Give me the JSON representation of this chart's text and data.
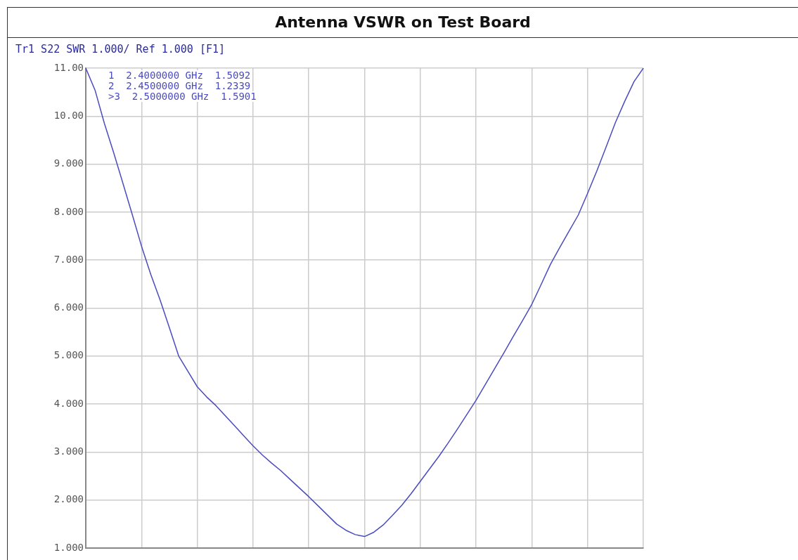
{
  "chart_data": {
    "type": "line",
    "title": "Antenna VSWR on Test Board",
    "subtitle": "Tr1 S22 SWR 1.000/ Ref 1.000 [F1]",
    "categories": [
      null,
      null,
      null,
      null,
      null,
      null,
      null,
      null,
      null,
      null,
      null,
      null,
      null,
      null,
      null,
      null,
      null,
      null,
      null,
      null,
      null,
      null,
      null,
      null,
      null,
      null,
      null,
      null,
      null,
      null,
      null,
      null,
      null,
      null,
      null,
      null,
      null,
      null,
      null,
      null,
      null,
      null,
      null,
      null,
      null,
      null,
      null,
      null,
      null,
      null,
      null,
      null,
      null,
      null,
      null,
      null,
      null,
      null,
      null,
      null,
      null
    ],
    "series": [
      {
        "color": "#4b4bc0",
        "values": [
          11,
          10.54,
          9.85,
          9.24,
          8.6,
          7.95,
          7.29,
          6.7,
          6.17,
          5.59,
          5.0,
          4.68,
          4.36,
          4.15,
          3.97,
          3.76,
          3.55,
          3.34,
          3.13,
          2.94,
          2.77,
          2.61,
          2.43,
          2.25,
          2.07,
          1.88,
          1.69,
          1.5,
          1.37,
          1.28,
          1.24,
          1.33,
          1.48,
          1.68,
          1.89,
          2.13,
          2.39,
          2.65,
          2.91,
          3.19,
          3.48,
          3.78,
          4.08,
          4.41,
          4.74,
          5.07,
          5.41,
          5.74,
          6.08,
          6.49,
          6.91,
          7.26,
          7.6,
          7.94,
          8.39,
          8.86,
          9.36,
          9.87,
          10.31,
          10.72,
          11.0
        ]
      }
    ],
    "ylim": [
      1,
      11
    ],
    "yticks": [
      {
        "value": 1,
        "label": "1.000"
      },
      {
        "value": 2,
        "label": "2.000"
      },
      {
        "value": 3,
        "label": "3.000"
      },
      {
        "value": 4,
        "label": "4.000"
      },
      {
        "value": 5,
        "label": "5.000"
      },
      {
        "value": 6,
        "label": "6.000"
      },
      {
        "value": 7,
        "label": "7.000"
      },
      {
        "value": 8,
        "label": "8.000"
      },
      {
        "value": 9,
        "label": "9.000"
      },
      {
        "value": 10,
        "label": "10.00"
      },
      {
        "value": 11,
        "label": "11.00"
      }
    ],
    "tick_labels": "y",
    "grid": true,
    "marker": "none",
    "line_style": "solid",
    "legend": false,
    "annotations": [
      "1  2.4000000 GHz  1.5092",
      "2  2.4500000 GHz  1.2339",
      ">3  2.5000000 GHz  1.5901"
    ]
  }
}
